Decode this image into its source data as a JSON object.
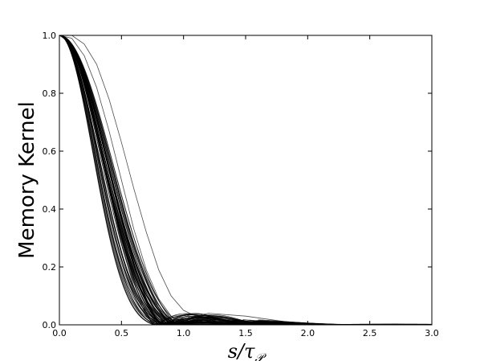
{
  "chart_data": {
    "type": "line",
    "title": "",
    "ylabel": "Memory Kernel",
    "xlabel_main": "s/τ",
    "xlabel_sub": "𝒫",
    "xlim": [
      0.0,
      3.0
    ],
    "ylim": [
      0.0,
      1.0
    ],
    "xticks": [
      "0.0",
      "0.5",
      "1.0",
      "1.5",
      "2.0",
      "2.5",
      "3.0"
    ],
    "yticks": [
      "0.0",
      "0.2",
      "0.4",
      "0.6",
      "0.8",
      "1.0"
    ],
    "grid": false,
    "legend": "none",
    "line_color": "#000000",
    "series_count": 60,
    "series_model": "damped Gaussian-like decay from 1.0 at s=0, reaching ~0 between s≈0.75 and s≈1.0, with small secondary bumps up to ~0.05 near s≈1.1–1.6",
    "series": [
      {
        "x": [
          0.0,
          0.1,
          0.2,
          0.3,
          0.4,
          0.5,
          0.6,
          0.7,
          0.8,
          1.0,
          1.2,
          1.5,
          2.0,
          3.0
        ],
        "y": [
          1.0,
          0.97,
          0.85,
          0.67,
          0.47,
          0.28,
          0.13,
          0.03,
          0.0,
          0.0,
          0.0,
          0.0,
          0.0,
          0.0
        ]
      },
      {
        "x": [
          0.0,
          0.1,
          0.2,
          0.3,
          0.4,
          0.5,
          0.6,
          0.7,
          0.8,
          0.9,
          1.0,
          1.2,
          1.5,
          2.0,
          3.0
        ],
        "y": [
          1.0,
          0.99,
          0.93,
          0.82,
          0.67,
          0.5,
          0.33,
          0.19,
          0.09,
          0.03,
          0.01,
          0.02,
          0.01,
          0.0,
          0.0
        ]
      },
      {
        "x": [
          0.0,
          0.1,
          0.2,
          0.3,
          0.4,
          0.5,
          0.6,
          0.7,
          0.8,
          0.9,
          1.0,
          1.1,
          1.2,
          1.5,
          2.0,
          3.0
        ],
        "y": [
          1.0,
          1.0,
          0.97,
          0.9,
          0.78,
          0.63,
          0.47,
          0.32,
          0.19,
          0.1,
          0.05,
          0.03,
          0.04,
          0.03,
          0.0,
          0.0
        ]
      }
    ]
  }
}
